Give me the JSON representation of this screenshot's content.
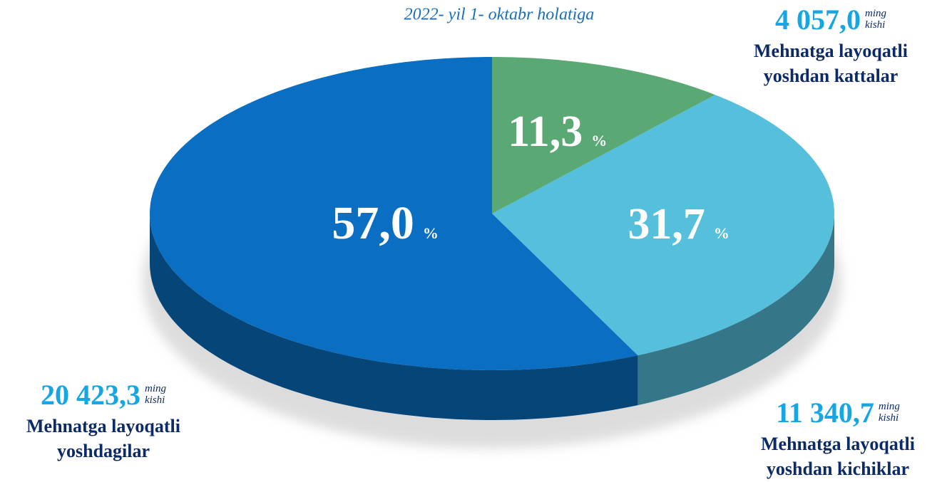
{
  "chart_data": {
    "type": "pie",
    "subtitle": "2022- yil 1- oktabr holatiga",
    "categories": [
      "Mehnatga layoqatli yoshdan kattalar",
      "Mehnatga layoqatli yoshdan kichiklar",
      "Mehnatga layoqatli yoshdagilar"
    ],
    "values": [
      11.3,
      31.7,
      57.0
    ],
    "value_labels": [
      "11,3",
      "31,7",
      "57,0"
    ],
    "unit": "%",
    "counts": [
      4057.0,
      11340.7,
      20423.3
    ],
    "count_labels": [
      "4 057,0",
      "11 340,7",
      "20 423,3"
    ],
    "count_unit": [
      "ming",
      "kishi"
    ],
    "colors": [
      "#5aa874",
      "#56bfdc",
      "#0a6fc2"
    ]
  }
}
